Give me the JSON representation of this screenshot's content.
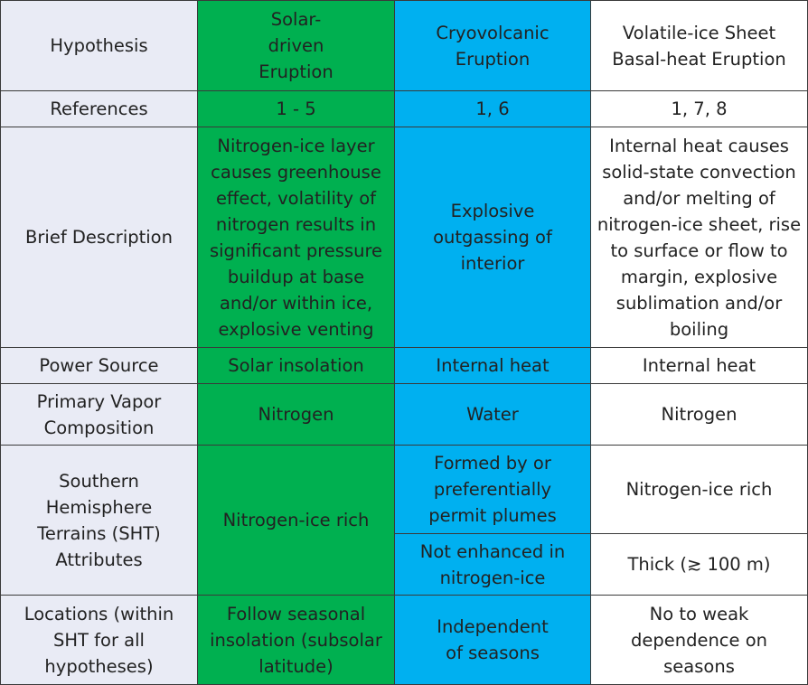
{
  "table": {
    "hypothesis": {
      "label": "Hypothesis",
      "solar": "Solar-driven Eruption",
      "cryo": "Cryovolcanic Eruption",
      "volatile": "Volatile-ice Sheet Basal-heat Eruption"
    },
    "references": {
      "label": "References",
      "solar": "1 - 5",
      "cryo": "1, 6",
      "volatile": "1, 7, 8"
    },
    "description": {
      "label": "Brief Description",
      "solar": "Nitrogen-ice layer causes greenhouse effect, volatility of nitrogen results in significant pressure buildup at base and/or within ice, explosive venting",
      "cryo": "Explosive outgassing of interior",
      "volatile": "Internal heat causes solid-state convection and/or melting of nitrogen-ice sheet, rise to surface or flow to margin, explosive sublimation and/or boiling"
    },
    "power": {
      "label": "Power Source",
      "solar": "Solar insolation",
      "cryo": "Internal heat",
      "volatile": "Internal heat"
    },
    "vapor": {
      "label": "Primary Vapor Composition",
      "solar": "Nitrogen",
      "cryo": "Water",
      "volatile": "Nitrogen"
    },
    "sht": {
      "label": "Southern Hemisphere Terrains (SHT) Attributes",
      "solar": "Nitrogen-ice rich",
      "cryo_a": "Formed by or preferentially permit plumes",
      "cryo_b": "Not enhanced in nitrogen-ice",
      "volatile_a": "Nitrogen-ice rich",
      "volatile_b": "Thick (≳ 100 m)"
    },
    "locations": {
      "label": "Locations (within SHT for all hypotheses)",
      "solar": "Follow seasonal insolation (subsolar latitude)",
      "cryo": "Independent of seasons",
      "volatile": "No to weak dependence on seasons"
    }
  }
}
